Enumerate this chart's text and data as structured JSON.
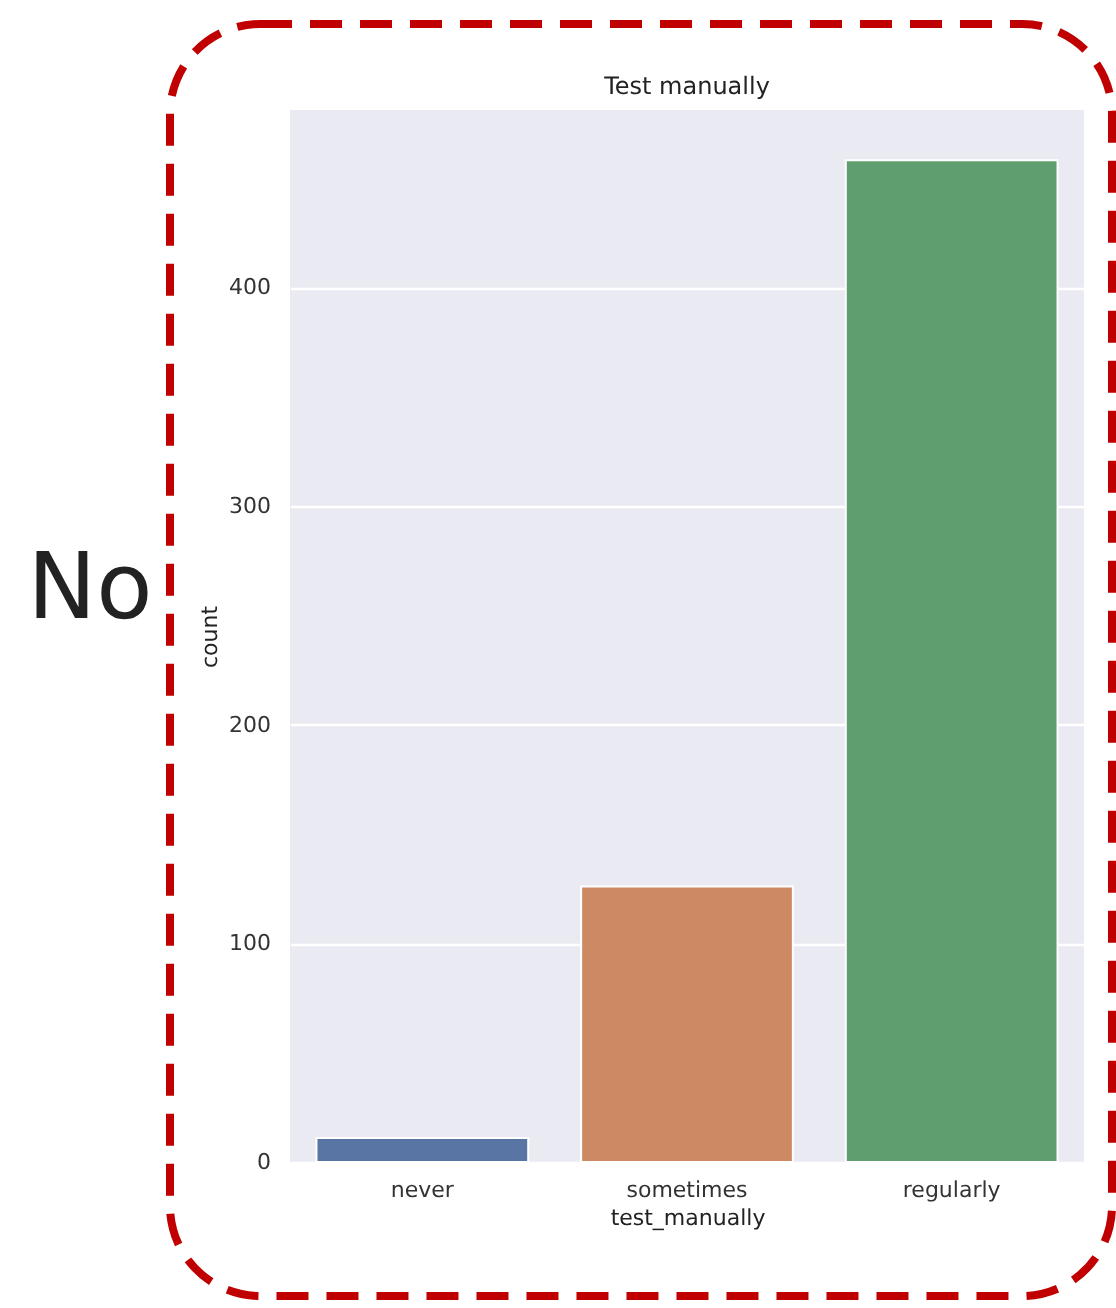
{
  "chart_data": {
    "type": "bar",
    "title": "Test manually",
    "xlabel": "test_manually",
    "ylabel": "count",
    "categories": [
      "never",
      "sometimes",
      "regularly"
    ],
    "values": [
      11,
      126,
      458
    ],
    "colors": [
      "#5975a4",
      "#cc8963",
      "#5f9e6e"
    ],
    "ylim": [
      0,
      481
    ],
    "yticks": [
      0,
      100,
      200,
      300,
      400
    ],
    "grid": "y",
    "annotations": [
      "No"
    ]
  }
}
